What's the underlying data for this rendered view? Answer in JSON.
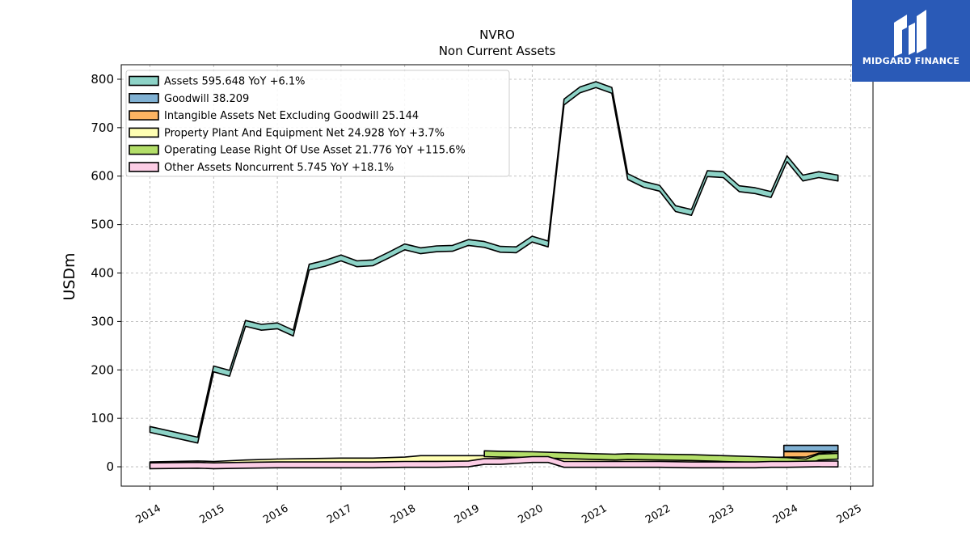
{
  "brand": {
    "name": "MIDGARD FINANCE",
    "icon": "midgard-logo-icon",
    "color": "#2a5ab7"
  },
  "chart_data": {
    "type": "area",
    "title": "NVRO",
    "subtitle": "Non Current  Assets",
    "ylabel": "USDm",
    "xlabel": "",
    "ylim": [
      -40,
      830
    ],
    "xlim": [
      2013.55,
      2025.35
    ],
    "yticks": [
      0,
      100,
      200,
      300,
      400,
      500,
      600,
      700,
      800
    ],
    "xticks": [
      2014,
      2015,
      2016,
      2017,
      2018,
      2019,
      2020,
      2021,
      2022,
      2023,
      2024,
      2025
    ],
    "grid": true,
    "legend_position": "top-left",
    "series": [
      {
        "name": "Assets",
        "legend": "Assets  595.648 YoY +6.1%",
        "color": "#8dd3c7",
        "x": [
          2014.0,
          2014.75,
          2015.0,
          2015.25,
          2015.5,
          2015.75,
          2016.0,
          2016.25,
          2016.5,
          2016.75,
          2017.0,
          2017.25,
          2017.5,
          2017.75,
          2018.0,
          2018.25,
          2018.5,
          2018.75,
          2019.0,
          2019.25,
          2019.5,
          2019.75,
          2020.0,
          2020.25,
          2020.5,
          2020.75,
          2021.0,
          2021.25,
          2021.5,
          2021.75,
          2022.0,
          2022.25,
          2022.5,
          2022.75,
          2023.0,
          2023.25,
          2023.5,
          2023.75,
          2024.0,
          2024.25,
          2024.5,
          2024.8
        ],
        "y": [
          77,
          55,
          202,
          193,
          296,
          288,
          291,
          276,
          412,
          420,
          431,
          419,
          421,
          437,
          454,
          446,
          450,
          451,
          463,
          459,
          449,
          448,
          470,
          460,
          753,
          778,
          789,
          777,
          599,
          583,
          575,
          533,
          525,
          605,
          603,
          574,
          570,
          562,
          636,
          596,
          603,
          596
        ]
      },
      {
        "name": "Goodwill",
        "legend": "Goodwill  38.209",
        "color": "#80b1d3",
        "x": [
          2023.95,
          2024.8
        ],
        "y": [
          38.209,
          38.209
        ]
      },
      {
        "name": "Intangible Assets Net Excluding Goodwill",
        "legend": "Intangible Assets Net Excluding Goodwill  25.144",
        "color": "#fdb462",
        "x": [
          2023.95,
          2024.8
        ],
        "y": [
          25.144,
          25.144
        ]
      },
      {
        "name": "Property Plant And Equipment Net",
        "legend": "Property Plant And Equipment Net  24.928 YoY +3.7%",
        "color": "#ffffb3",
        "x": [
          2014.0,
          2014.75,
          2015.0,
          2015.5,
          2016.0,
          2016.5,
          2017.0,
          2017.5,
          2018.0,
          2018.25,
          2018.5,
          2019.0,
          2019.5,
          2020.0,
          2020.5,
          2021.0,
          2021.5,
          2022.0,
          2022.5,
          2023.0,
          2023.5,
          2024.0,
          2024.3,
          2024.5,
          2024.8
        ],
        "y": [
          4,
          6,
          5,
          8,
          10,
          11,
          12,
          12,
          14,
          17,
          17,
          17,
          17,
          16,
          14,
          12,
          12,
          12,
          12,
          12,
          12,
          14,
          14,
          22,
          24.9
        ]
      },
      {
        "name": "Operating Lease Right Of Use Asset",
        "legend": "Operating Lease Right Of Use Asset  21.776 YoY +115.6%",
        "color": "#b3de69",
        "x": [
          2019.25,
          2019.5,
          2020.0,
          2020.5,
          2021.0,
          2021.3,
          2021.5,
          2022.0,
          2022.5,
          2023.0,
          2023.5,
          2024.0,
          2024.3,
          2024.5,
          2024.8
        ],
        "y": [
          27,
          26,
          25,
          23,
          21,
          20,
          21,
          20,
          19,
          17,
          15,
          13,
          10,
          20,
          21.8
        ]
      },
      {
        "name": "Other Assets Noncurrent",
        "legend": "Other Assets Noncurrent  5.745 YoY +18.1%",
        "color": "#fccde5",
        "x": [
          2014.0,
          2014.75,
          2015.0,
          2015.5,
          2016.0,
          2016.5,
          2017.0,
          2017.5,
          2018.0,
          2018.5,
          2019.0,
          2019.25,
          2019.5,
          2020.0,
          2020.25,
          2020.5,
          2021.0,
          2021.5,
          2022.0,
          2022.5,
          2023.0,
          2023.5,
          2023.75,
          2024.0,
          2024.5,
          2024.8
        ],
        "y": [
          2,
          3,
          2,
          3,
          4,
          4,
          4,
          4,
          5,
          5,
          6,
          11,
          11,
          15,
          15,
          5,
          5,
          5,
          5,
          4,
          4,
          4,
          5,
          5,
          6,
          5.7
        ]
      }
    ]
  }
}
